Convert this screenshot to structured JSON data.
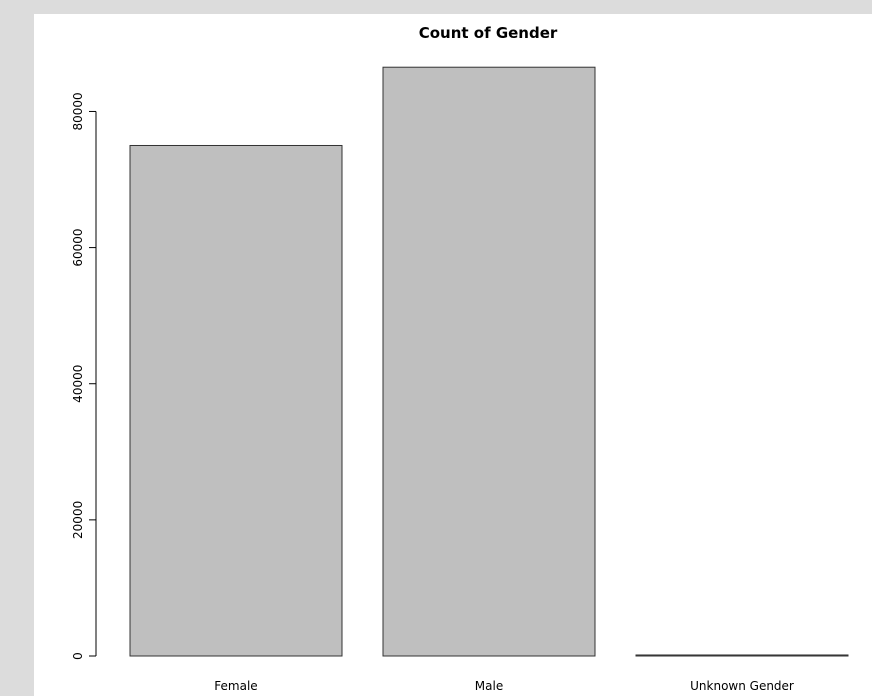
{
  "chart_data": {
    "type": "bar",
    "title": "Count of Gender",
    "xlabel": "",
    "ylabel": "",
    "categories": [
      "Female",
      "Male",
      "Unknown Gender"
    ],
    "values": [
      75000,
      86500,
      150
    ],
    "y_ticks": [
      "0",
      "20000",
      "40000",
      "60000",
      "80000"
    ],
    "y_tick_values": [
      0,
      20000,
      40000,
      60000,
      80000
    ],
    "ylim": [
      0,
      88000
    ],
    "grid": false,
    "legend": "none",
    "bar_fill": "#bfbfbf",
    "bar_stroke": "#333333",
    "background": "#ffffff",
    "outer_background": "#dcdcdc"
  }
}
